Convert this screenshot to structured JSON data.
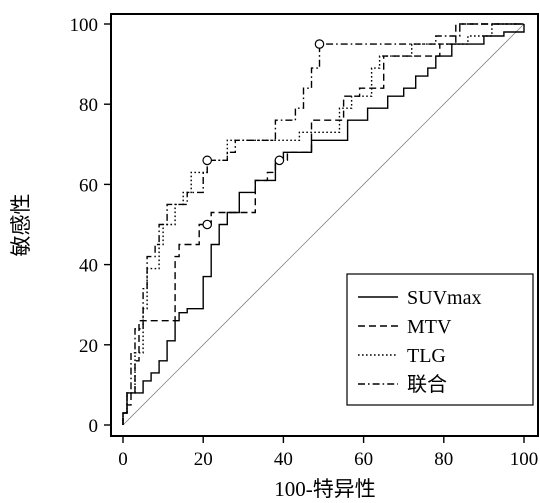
{
  "chart_data": {
    "type": "line",
    "subtype": "ROC",
    "xlabel": "100-特异性",
    "ylabel": "敏感性",
    "xlim": [
      0,
      100
    ],
    "ylim": [
      0,
      100
    ],
    "xticks": [
      "0",
      "20",
      "40",
      "60",
      "80",
      "100"
    ],
    "yticks": [
      "0",
      "20",
      "40",
      "60",
      "80",
      "100"
    ],
    "grid": false,
    "legend_position": "bottom-right",
    "reference_line": true,
    "series": [
      {
        "name": "SUVmax",
        "style": "solid",
        "points": [
          [
            0,
            0
          ],
          [
            0,
            3
          ],
          [
            1,
            3
          ],
          [
            1,
            8
          ],
          [
            5,
            8
          ],
          [
            5,
            11
          ],
          [
            7,
            11
          ],
          [
            7,
            13
          ],
          [
            9,
            13
          ],
          [
            9,
            16
          ],
          [
            11,
            16
          ],
          [
            11,
            21
          ],
          [
            13,
            21
          ],
          [
            13,
            26
          ],
          [
            14,
            26
          ],
          [
            14,
            28
          ],
          [
            16,
            28
          ],
          [
            16,
            29
          ],
          [
            20,
            29
          ],
          [
            20,
            37
          ],
          [
            22,
            37
          ],
          [
            22,
            45
          ],
          [
            24,
            45
          ],
          [
            24,
            50
          ],
          [
            26,
            50
          ],
          [
            26,
            53
          ],
          [
            29,
            53
          ],
          [
            29,
            58
          ],
          [
            33,
            58
          ],
          [
            33,
            61
          ],
          [
            38,
            61
          ],
          [
            38,
            66
          ],
          [
            40,
            66
          ],
          [
            40,
            68
          ],
          [
            47,
            68
          ],
          [
            47,
            71
          ],
          [
            56,
            71
          ],
          [
            56,
            76
          ],
          [
            61,
            76
          ],
          [
            61,
            79
          ],
          [
            66,
            79
          ],
          [
            66,
            82
          ],
          [
            70,
            82
          ],
          [
            70,
            84
          ],
          [
            73,
            84
          ],
          [
            73,
            87
          ],
          [
            76,
            87
          ],
          [
            76,
            89
          ],
          [
            78,
            89
          ],
          [
            78,
            92
          ],
          [
            82,
            92
          ],
          [
            82,
            95
          ],
          [
            90,
            95
          ],
          [
            90,
            97
          ],
          [
            95,
            97
          ],
          [
            95,
            98
          ],
          [
            100,
            98
          ],
          [
            100,
            100
          ]
        ]
      },
      {
        "name": "MTV",
        "style": "dashed",
        "points": [
          [
            0,
            0
          ],
          [
            0,
            3
          ],
          [
            1,
            3
          ],
          [
            1,
            5
          ],
          [
            2,
            5
          ],
          [
            2,
            8
          ],
          [
            3,
            8
          ],
          [
            3,
            16
          ],
          [
            4,
            16
          ],
          [
            4,
            26
          ],
          [
            13,
            26
          ],
          [
            13,
            42
          ],
          [
            14,
            42
          ],
          [
            14,
            45
          ],
          [
            19,
            45
          ],
          [
            19,
            50
          ],
          [
            22,
            50
          ],
          [
            22,
            53
          ],
          [
            33,
            53
          ],
          [
            33,
            61
          ],
          [
            36,
            61
          ],
          [
            36,
            63
          ],
          [
            38,
            63
          ],
          [
            38,
            66
          ],
          [
            41,
            66
          ],
          [
            41,
            68
          ],
          [
            47,
            68
          ],
          [
            47,
            76
          ],
          [
            55,
            76
          ],
          [
            55,
            82
          ],
          [
            59,
            82
          ],
          [
            59,
            84
          ],
          [
            65,
            84
          ],
          [
            65,
            92
          ],
          [
            79,
            92
          ],
          [
            79,
            95
          ],
          [
            83,
            95
          ],
          [
            83,
            100
          ],
          [
            100,
            100
          ]
        ]
      },
      {
        "name": "TLG",
        "style": "dotted",
        "points": [
          [
            0,
            0
          ],
          [
            0,
            3
          ],
          [
            1,
            3
          ],
          [
            1,
            8
          ],
          [
            3,
            8
          ],
          [
            3,
            18
          ],
          [
            5,
            18
          ],
          [
            5,
            29
          ],
          [
            6,
            29
          ],
          [
            6,
            39
          ],
          [
            9,
            39
          ],
          [
            9,
            45
          ],
          [
            10,
            45
          ],
          [
            10,
            50
          ],
          [
            13,
            50
          ],
          [
            13,
            55
          ],
          [
            15,
            55
          ],
          [
            15,
            58
          ],
          [
            17,
            58
          ],
          [
            17,
            63
          ],
          [
            21,
            63
          ],
          [
            21,
            66
          ],
          [
            26,
            66
          ],
          [
            26,
            71
          ],
          [
            44,
            71
          ],
          [
            44,
            73
          ],
          [
            54,
            73
          ],
          [
            54,
            79
          ],
          [
            57,
            79
          ],
          [
            57,
            82
          ],
          [
            62,
            82
          ],
          [
            62,
            89
          ],
          [
            64,
            89
          ],
          [
            64,
            92
          ],
          [
            72,
            92
          ],
          [
            72,
            95
          ],
          [
            86,
            95
          ],
          [
            86,
            97
          ],
          [
            92,
            97
          ],
          [
            92,
            100
          ],
          [
            100,
            100
          ]
        ]
      },
      {
        "name": "联合",
        "style": "dashdot",
        "points": [
          [
            0,
            0
          ],
          [
            0,
            3
          ],
          [
            1,
            3
          ],
          [
            1,
            8
          ],
          [
            2,
            8
          ],
          [
            2,
            18
          ],
          [
            3,
            18
          ],
          [
            3,
            24
          ],
          [
            5,
            24
          ],
          [
            5,
            34
          ],
          [
            6,
            34
          ],
          [
            6,
            42
          ],
          [
            8,
            42
          ],
          [
            8,
            45
          ],
          [
            9,
            45
          ],
          [
            9,
            50
          ],
          [
            11,
            50
          ],
          [
            11,
            55
          ],
          [
            16,
            55
          ],
          [
            16,
            58
          ],
          [
            20,
            58
          ],
          [
            20,
            63
          ],
          [
            21,
            63
          ],
          [
            21,
            66
          ],
          [
            26,
            66
          ],
          [
            26,
            68
          ],
          [
            28,
            68
          ],
          [
            28,
            71
          ],
          [
            38,
            71
          ],
          [
            38,
            76
          ],
          [
            43,
            76
          ],
          [
            43,
            79
          ],
          [
            45,
            79
          ],
          [
            45,
            84
          ],
          [
            47,
            84
          ],
          [
            47,
            89
          ],
          [
            49,
            89
          ],
          [
            49,
            95
          ],
          [
            78,
            95
          ],
          [
            78,
            97
          ],
          [
            84,
            97
          ],
          [
            84,
            100
          ],
          [
            100,
            100
          ]
        ]
      }
    ],
    "markers": [
      [
        21,
        66
      ],
      [
        39,
        66
      ],
      [
        21,
        50
      ],
      [
        49,
        95
      ]
    ]
  }
}
